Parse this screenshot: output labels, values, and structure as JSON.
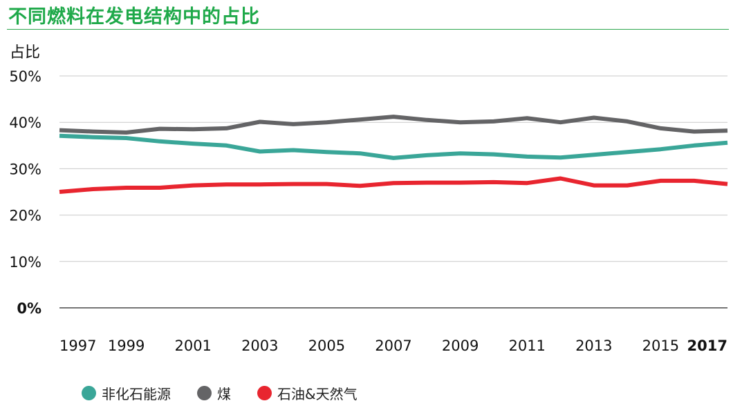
{
  "title": "不同燃料在发电结构中的占比",
  "chart_data": {
    "type": "line",
    "title": "不同燃料在发电结构中的占比",
    "ylabel": "占比",
    "xlabel": "",
    "ylim": [
      0,
      50
    ],
    "y_ticks": [
      "0%",
      "10%",
      "20%",
      "30%",
      "40%",
      "50%"
    ],
    "x_ticks": [
      "1997",
      "1999",
      "2001",
      "2003",
      "2005",
      "2007",
      "2009",
      "2011",
      "2013",
      "2015",
      "2017"
    ],
    "x": [
      1997,
      1998,
      1999,
      2000,
      2001,
      2002,
      2003,
      2004,
      2005,
      2006,
      2007,
      2008,
      2009,
      2010,
      2011,
      2012,
      2013,
      2014,
      2015,
      2016,
      2017
    ],
    "grid": true,
    "legend_position": "bottom",
    "series": [
      {
        "name": "非化石能源",
        "color": "#3aa698",
        "values": [
          37.1,
          36.8,
          36.6,
          35.9,
          35.4,
          35.0,
          33.7,
          34.0,
          33.6,
          33.3,
          32.3,
          32.9,
          33.3,
          33.1,
          32.6,
          32.4,
          33.0,
          33.6,
          34.2,
          35.0,
          35.6
        ]
      },
      {
        "name": "煤",
        "color": "#646466",
        "values": [
          38.3,
          38.0,
          37.8,
          38.6,
          38.5,
          38.7,
          40.1,
          39.6,
          40.0,
          40.6,
          41.2,
          40.5,
          40.0,
          40.2,
          40.9,
          40.0,
          41.0,
          40.2,
          38.7,
          38.0,
          38.2
        ]
      },
      {
        "name": "石油&天然气",
        "color": "#e8252f",
        "values": [
          25.0,
          25.6,
          25.9,
          25.9,
          26.4,
          26.6,
          26.6,
          26.7,
          26.7,
          26.3,
          26.9,
          27.0,
          27.0,
          27.1,
          26.9,
          27.9,
          26.4,
          26.4,
          27.4,
          27.4,
          26.7
        ]
      }
    ]
  }
}
